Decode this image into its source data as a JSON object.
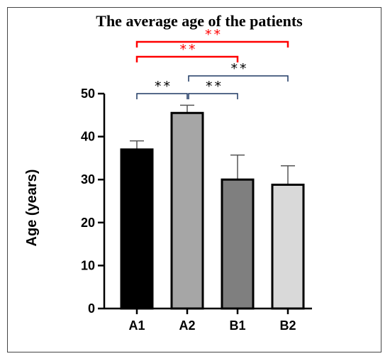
{
  "chart_data": {
    "type": "bar",
    "title": "The average age of the patients",
    "xlabel": "",
    "ylabel": "Age (years)",
    "categories": [
      "A1",
      "A2",
      "B1",
      "B2"
    ],
    "values": [
      37,
      45.5,
      30,
      28.8
    ],
    "errors": [
      2,
      1.8,
      5.7,
      4.4
    ],
    "bar_colors": [
      "#000000",
      "#a6a6a6",
      "#7f7f7f",
      "#d9d9d9"
    ],
    "ylim": [
      0,
      50
    ],
    "yticks": [
      0,
      10,
      20,
      30,
      40,
      50
    ],
    "grid": false,
    "annotations": [
      {
        "from": "A1",
        "to": "A2",
        "label": "**",
        "color": "#000000",
        "bracket_color": "#1f3864"
      },
      {
        "from": "A2",
        "to": "B1",
        "label": "**",
        "color": "#000000",
        "bracket_color": "#1f3864"
      },
      {
        "from": "A2",
        "to": "B2",
        "label": "**",
        "color": "#000000",
        "bracket_color": "#1f3864"
      },
      {
        "from": "A1",
        "to": "B1",
        "label": "**",
        "color": "#ff0000",
        "bracket_color": "#ff0000"
      },
      {
        "from": "A1",
        "to": "B2",
        "label": "**",
        "color": "#ff0000",
        "bracket_color": "#ff0000"
      }
    ]
  }
}
